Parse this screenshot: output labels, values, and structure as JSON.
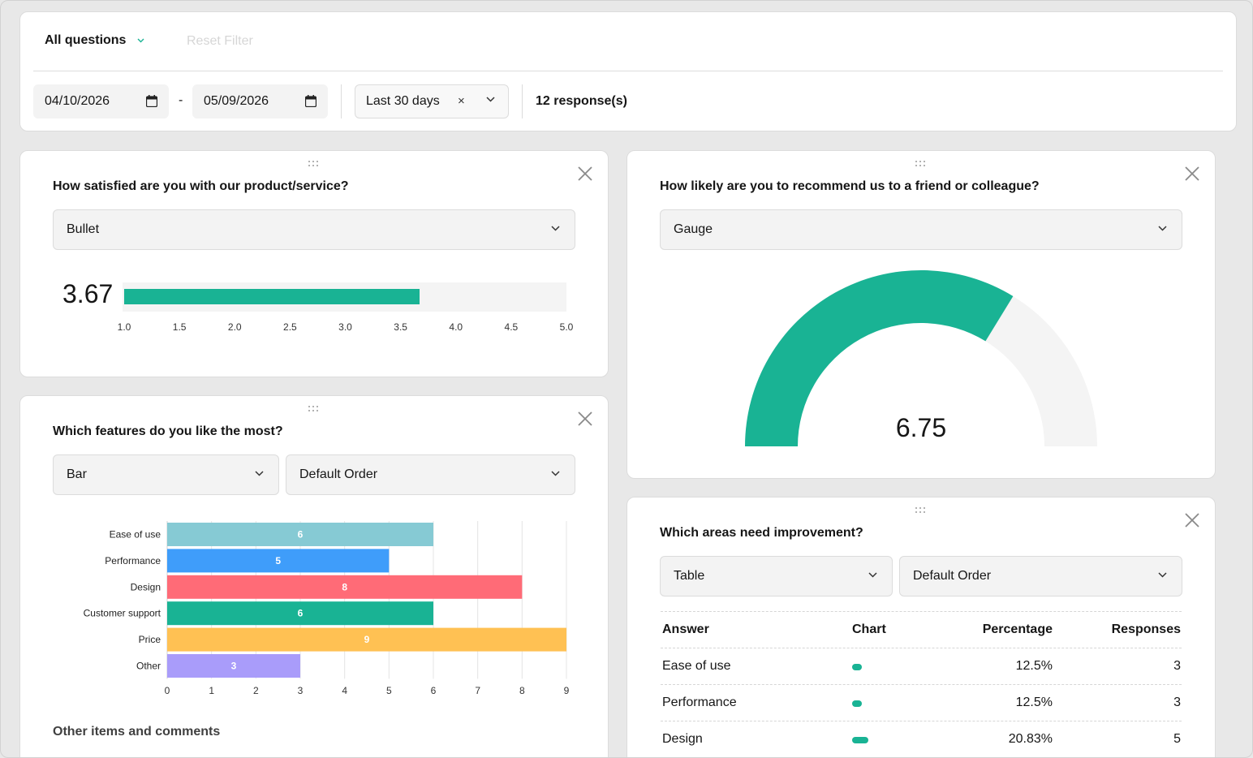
{
  "filter": {
    "question_select": "All questions",
    "reset_label": "Reset Filter",
    "date_from": "04/10/2026",
    "date_separator": "-",
    "date_to": "05/09/2026",
    "range_label": "Last 30 days",
    "clear_symbol": "×",
    "responses": "12 response(s)"
  },
  "colors": {
    "accent": "#19b394",
    "track": "#f4f4f4",
    "bar_ease": "#86cad4",
    "bar_performance": "#3f9dfa",
    "bar_design": "#ff6b77",
    "bar_support": "#19b394",
    "bar_price": "#ffc153",
    "bar_other": "#a99cfa"
  },
  "icons": {
    "chevron": "chevron-down-icon",
    "calendar": "calendar-icon",
    "close": "close-icon",
    "drag": "drag-handle-icon"
  },
  "satisfaction": {
    "title": "How satisfied are you with our product/service?",
    "viz_select": "Bullet",
    "value_label": "3.67",
    "chart_data": {
      "type": "bar",
      "title": "",
      "values": [
        3.67
      ],
      "xlim": [
        1.0,
        5.0
      ],
      "ticks": [
        "1.0",
        "1.5",
        "2.0",
        "2.5",
        "3.0",
        "3.5",
        "4.0",
        "4.5",
        "5.0"
      ]
    }
  },
  "recommend": {
    "title": "How likely are you to recommend us to a friend or colleague?",
    "viz_select": "Gauge",
    "value_label": "6.75",
    "chart_data": {
      "type": "gauge",
      "title": "",
      "value": 6.75,
      "range": [
        0,
        10
      ]
    }
  },
  "features": {
    "title": "Which features do you like the most?",
    "viz_select": "Bar",
    "order_select": "Default Order",
    "chart_data": {
      "type": "bar",
      "orientation": "horizontal",
      "title": "",
      "categories": [
        "Ease of use",
        "Performance",
        "Design",
        "Customer support",
        "Price",
        "Other"
      ],
      "values": [
        6,
        5,
        8,
        6,
        9,
        3
      ],
      "xlim": [
        0,
        9
      ],
      "xticks": [
        0,
        1,
        2,
        3,
        4,
        5,
        6,
        7,
        8,
        9
      ],
      "grid": true
    },
    "other_title": "Other items and comments"
  },
  "improvement": {
    "title": "Which areas need improvement?",
    "viz_select": "Table",
    "order_select": "Default Order",
    "columns": [
      "Answer",
      "Chart",
      "Percentage",
      "Responses"
    ],
    "rows": [
      {
        "answer": "Ease of use",
        "percentage": "12.5%",
        "responses": "3",
        "share": 0.125
      },
      {
        "answer": "Performance",
        "percentage": "12.5%",
        "responses": "3",
        "share": 0.125
      },
      {
        "answer": "Design",
        "percentage": "20.83%",
        "responses": "5",
        "share": 0.2083
      }
    ]
  }
}
